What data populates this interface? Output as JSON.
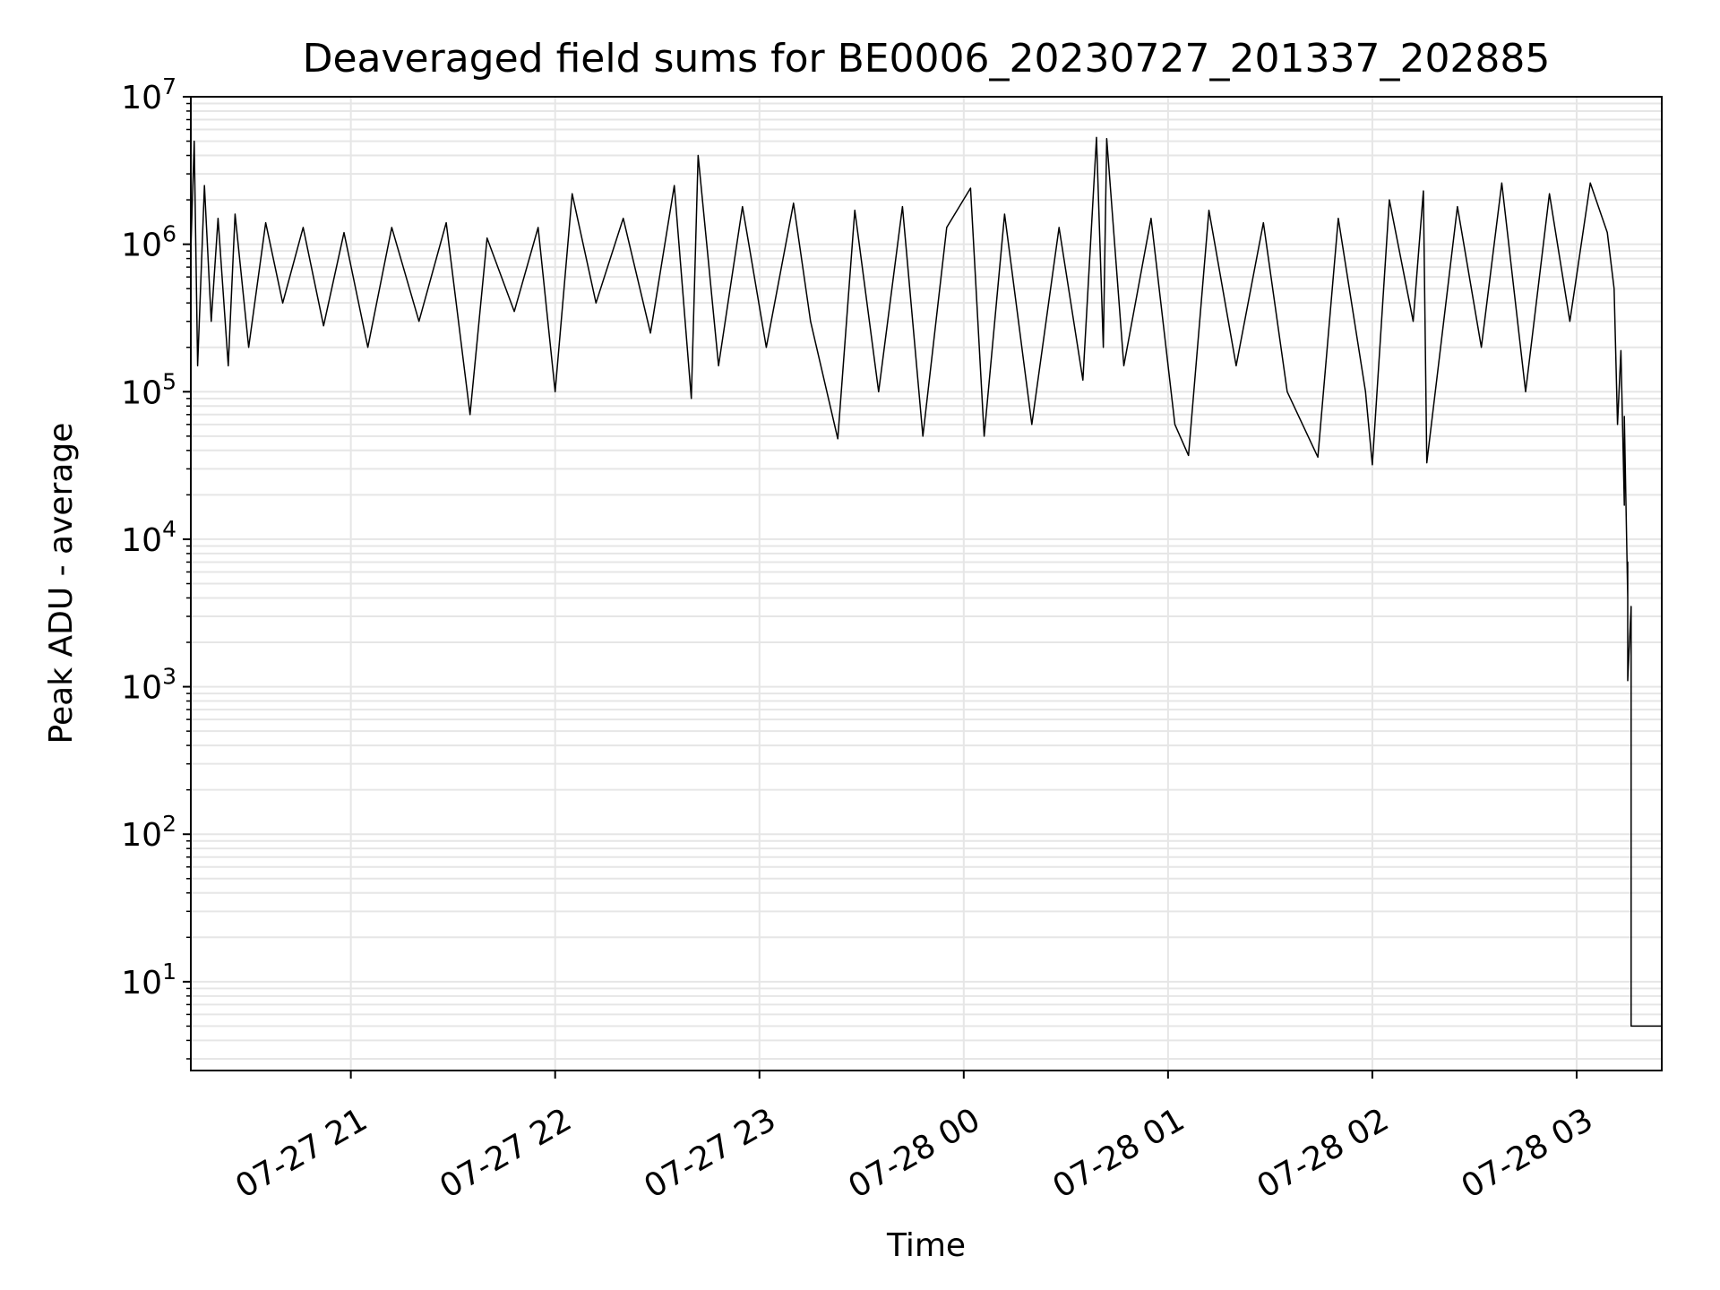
{
  "chart_data": {
    "type": "line",
    "title": "Deaveraged field sums for BE0006_20230727_201337_202885",
    "xlabel": "Time",
    "ylabel": "Peak ADU - average",
    "yscale": "log",
    "ylim": [
      2.5,
      10000000
    ],
    "xlim": [
      "2023-07-27 20:13",
      "2023-07-28 03:25"
    ],
    "grid": true,
    "line_color": "#000000",
    "grid_color": "#e6e6e6",
    "x_ticks": [
      {
        "label": "07-27 21",
        "time": "2023-07-27 21:00"
      },
      {
        "label": "07-27 22",
        "time": "2023-07-27 22:00"
      },
      {
        "label": "07-27 23",
        "time": "2023-07-27 23:00"
      },
      {
        "label": "07-28 00",
        "time": "2023-07-28 00:00"
      },
      {
        "label": "07-28 01",
        "time": "2023-07-28 01:00"
      },
      {
        "label": "07-28 02",
        "time": "2023-07-28 02:00"
      },
      {
        "label": "07-28 03",
        "time": "2023-07-28 03:00"
      }
    ],
    "y_ticks": [
      {
        "base": "10",
        "exp": "1",
        "value": 10
      },
      {
        "base": "10",
        "exp": "2",
        "value": 100
      },
      {
        "base": "10",
        "exp": "3",
        "value": 1000
      },
      {
        "base": "10",
        "exp": "4",
        "value": 10000
      },
      {
        "base": "10",
        "exp": "5",
        "value": 100000
      },
      {
        "base": "10",
        "exp": "6",
        "value": 1000000
      },
      {
        "base": "10",
        "exp": "7",
        "value": 10000000
      }
    ],
    "series": [
      {
        "points": [
          [
            "2023-07-27 20:13",
            900000
          ],
          [
            "2023-07-27 20:14",
            5000000
          ],
          [
            "2023-07-27 20:15",
            150000
          ],
          [
            "2023-07-27 20:17",
            2500000
          ],
          [
            "2023-07-27 20:19",
            300000
          ],
          [
            "2023-07-27 20:21",
            1500000
          ],
          [
            "2023-07-27 20:24",
            150000
          ],
          [
            "2023-07-27 20:26",
            1600000
          ],
          [
            "2023-07-27 20:30",
            200000
          ],
          [
            "2023-07-27 20:35",
            1400000
          ],
          [
            "2023-07-27 20:40",
            400000
          ],
          [
            "2023-07-27 20:46",
            1300000
          ],
          [
            "2023-07-27 20:52",
            280000
          ],
          [
            "2023-07-27 20:58",
            1200000
          ],
          [
            "2023-07-27 21:05",
            200000
          ],
          [
            "2023-07-27 21:12",
            1300000
          ],
          [
            "2023-07-27 21:20",
            300000
          ],
          [
            "2023-07-27 21:28",
            1400000
          ],
          [
            "2023-07-27 21:35",
            70000
          ],
          [
            "2023-07-27 21:40",
            1100000
          ],
          [
            "2023-07-27 21:48",
            350000
          ],
          [
            "2023-07-27 21:55",
            1300000
          ],
          [
            "2023-07-27 22:00",
            100000
          ],
          [
            "2023-07-27 22:05",
            2200000
          ],
          [
            "2023-07-27 22:12",
            400000
          ],
          [
            "2023-07-27 22:20",
            1500000
          ],
          [
            "2023-07-27 22:28",
            250000
          ],
          [
            "2023-07-27 22:35",
            2500000
          ],
          [
            "2023-07-27 22:40",
            90000
          ],
          [
            "2023-07-27 22:42",
            4000000
          ],
          [
            "2023-07-27 22:48",
            150000
          ],
          [
            "2023-07-27 22:55",
            1800000
          ],
          [
            "2023-07-27 23:02",
            200000
          ],
          [
            "2023-07-27 23:10",
            1900000
          ],
          [
            "2023-07-27 23:15",
            300000
          ],
          [
            "2023-07-27 23:23",
            48000
          ],
          [
            "2023-07-27 23:28",
            1700000
          ],
          [
            "2023-07-27 23:35",
            100000
          ],
          [
            "2023-07-27 23:42",
            1800000
          ],
          [
            "2023-07-27 23:48",
            50000
          ],
          [
            "2023-07-27 23:55",
            1300000
          ],
          [
            "2023-07-28 00:02",
            2400000
          ],
          [
            "2023-07-28 00:06",
            50000
          ],
          [
            "2023-07-28 00:12",
            1600000
          ],
          [
            "2023-07-28 00:20",
            60000
          ],
          [
            "2023-07-28 00:28",
            1300000
          ],
          [
            "2023-07-28 00:35",
            120000
          ],
          [
            "2023-07-28 00:39",
            5300000
          ],
          [
            "2023-07-28 00:41",
            200000
          ],
          [
            "2023-07-28 00:42",
            5200000
          ],
          [
            "2023-07-28 00:47",
            150000
          ],
          [
            "2023-07-28 00:55",
            1500000
          ],
          [
            "2023-07-28 01:02",
            60000
          ],
          [
            "2023-07-28 01:06",
            37000
          ],
          [
            "2023-07-28 01:12",
            1700000
          ],
          [
            "2023-07-28 01:20",
            150000
          ],
          [
            "2023-07-28 01:28",
            1400000
          ],
          [
            "2023-07-28 01:35",
            100000
          ],
          [
            "2023-07-28 01:44",
            36000
          ],
          [
            "2023-07-28 01:50",
            1500000
          ],
          [
            "2023-07-28 01:58",
            100000
          ],
          [
            "2023-07-28 02:00",
            32000
          ],
          [
            "2023-07-28 02:05",
            2000000
          ],
          [
            "2023-07-28 02:12",
            300000
          ],
          [
            "2023-07-28 02:15",
            2300000
          ],
          [
            "2023-07-28 02:16",
            33000
          ],
          [
            "2023-07-28 02:25",
            1800000
          ],
          [
            "2023-07-28 02:32",
            200000
          ],
          [
            "2023-07-28 02:38",
            2600000
          ],
          [
            "2023-07-28 02:45",
            100000
          ],
          [
            "2023-07-28 02:52",
            2200000
          ],
          [
            "2023-07-28 02:58",
            300000
          ],
          [
            "2023-07-28 03:04",
            2600000
          ],
          [
            "2023-07-28 03:09",
            1200000
          ],
          [
            "2023-07-28 03:11",
            500000
          ],
          [
            "2023-07-28 03:12",
            60000
          ],
          [
            "2023-07-28 03:13",
            190000
          ],
          [
            "2023-07-28 03:14",
            17000
          ],
          [
            "2023-07-28 03:14",
            68000
          ],
          [
            "2023-07-28 03:15",
            4000
          ],
          [
            "2023-07-28 03:15",
            7000
          ],
          [
            "2023-07-28 03:15",
            1100
          ],
          [
            "2023-07-28 03:16",
            3500
          ],
          [
            "2023-07-28 03:16",
            240
          ],
          [
            "2023-07-28 03:16",
            5
          ],
          [
            "2023-07-28 03:25",
            5
          ]
        ]
      }
    ]
  }
}
